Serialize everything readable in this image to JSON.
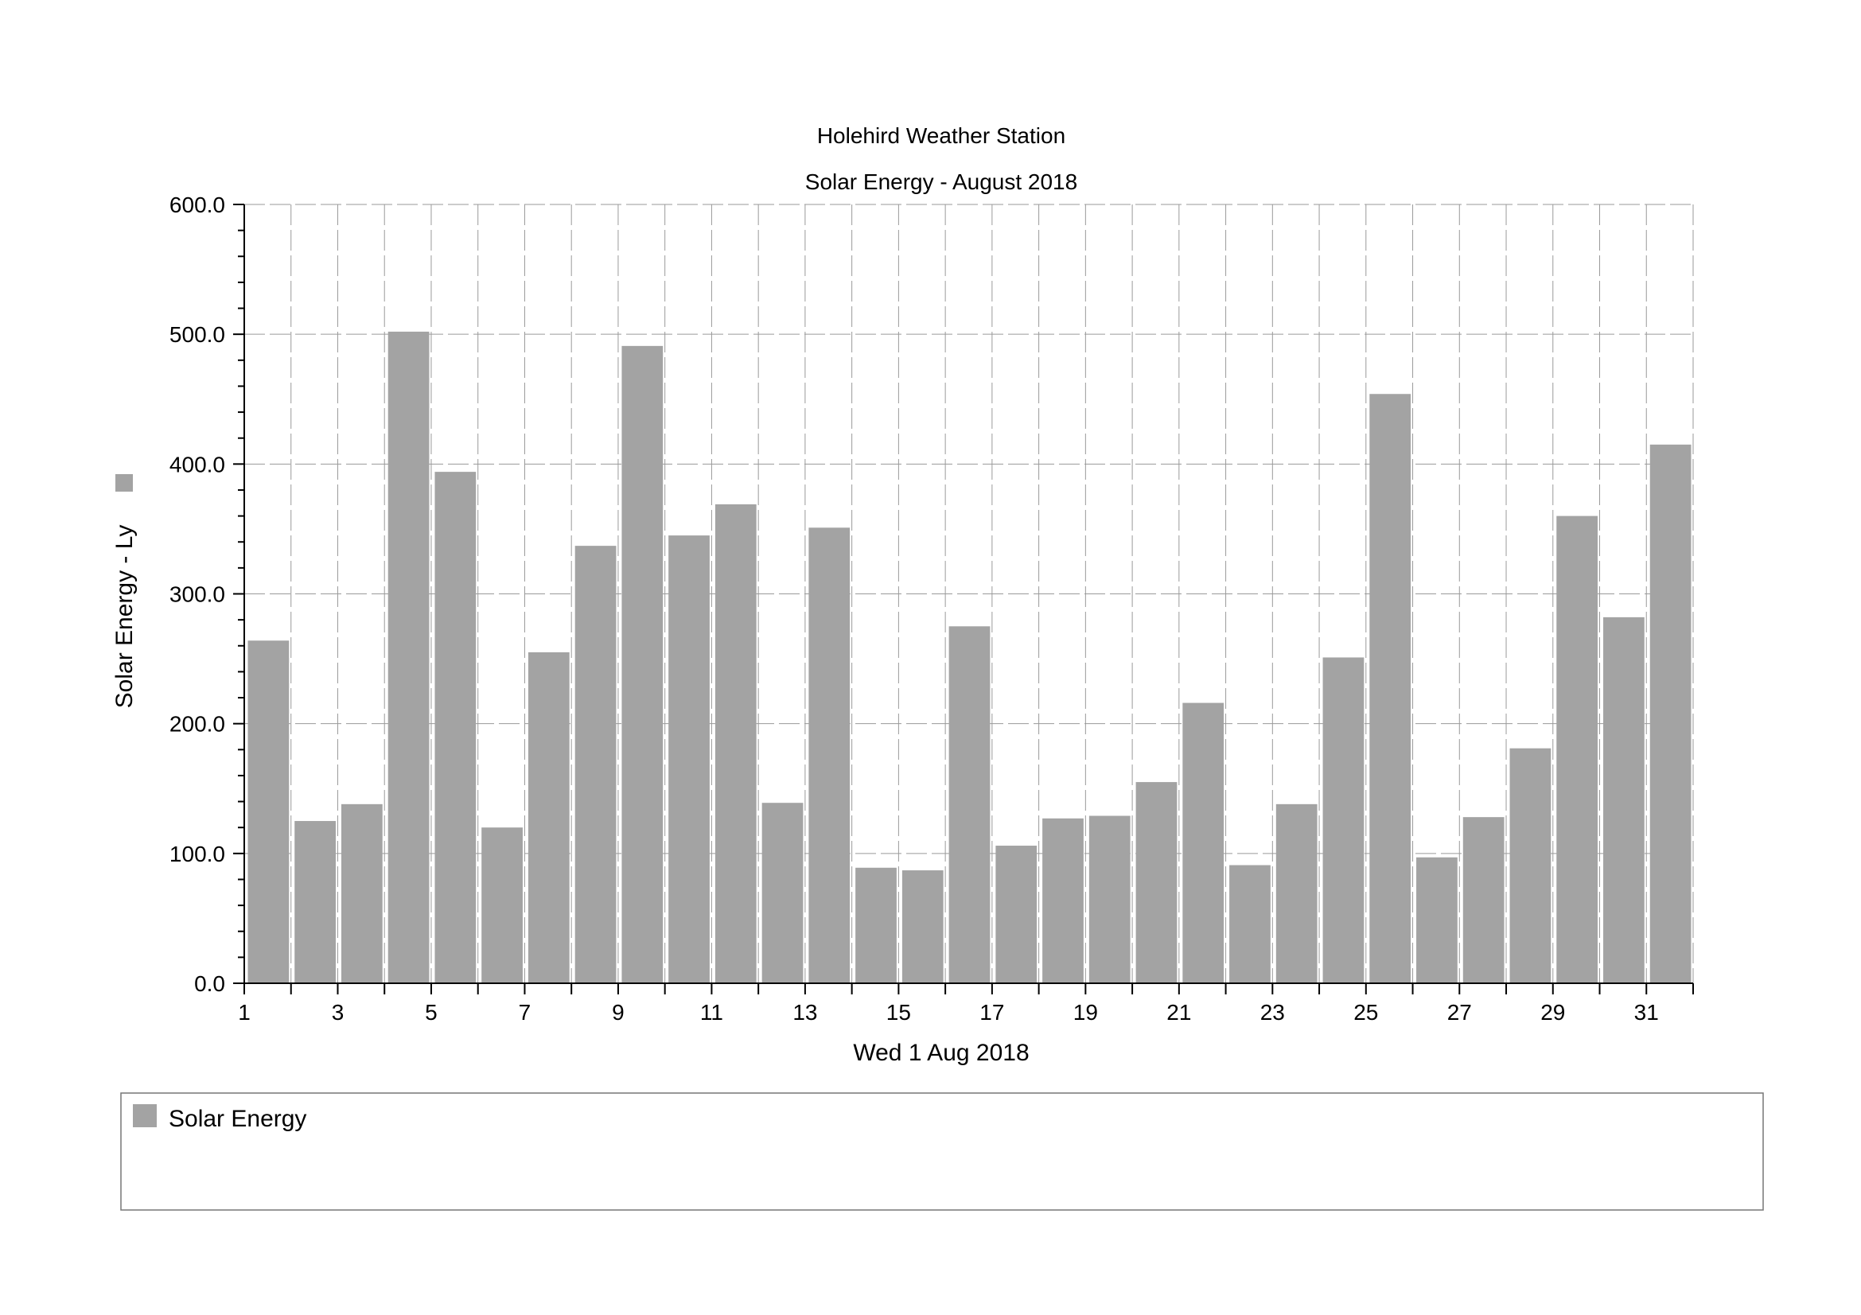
{
  "chart_data": {
    "type": "bar",
    "title": "Holehird Weather Station",
    "subtitle": "Solar Energy - August 2018",
    "xlabel": "Wed 1 Aug 2018",
    "ylabel": "Solar Energy - Ly",
    "ylim": [
      0,
      600
    ],
    "yticks": [
      "0.0",
      "100.0",
      "200.0",
      "300.0",
      "400.0",
      "500.0",
      "600.0"
    ],
    "xticks": [
      "1",
      "3",
      "5",
      "7",
      "9",
      "11",
      "13",
      "15",
      "17",
      "19",
      "21",
      "23",
      "25",
      "27",
      "29",
      "31"
    ],
    "categories": [
      1,
      2,
      3,
      4,
      5,
      6,
      7,
      8,
      9,
      10,
      11,
      12,
      13,
      14,
      15,
      16,
      17,
      18,
      19,
      20,
      21,
      22,
      23,
      24,
      25,
      26,
      27,
      28,
      29,
      30,
      31
    ],
    "series": [
      {
        "name": "Solar Energy",
        "color": "#a3a3a3",
        "values": [
          264,
          125,
          138,
          502,
          394,
          120,
          255,
          337,
          491,
          345,
          369,
          139,
          351,
          89,
          87,
          275,
          106,
          127,
          129,
          155,
          216,
          91,
          138,
          251,
          454,
          97,
          128,
          181,
          360,
          282,
          415
        ]
      }
    ],
    "grid": true,
    "legend": {
      "position": "bottom",
      "entries": [
        "Solar Energy"
      ]
    }
  }
}
